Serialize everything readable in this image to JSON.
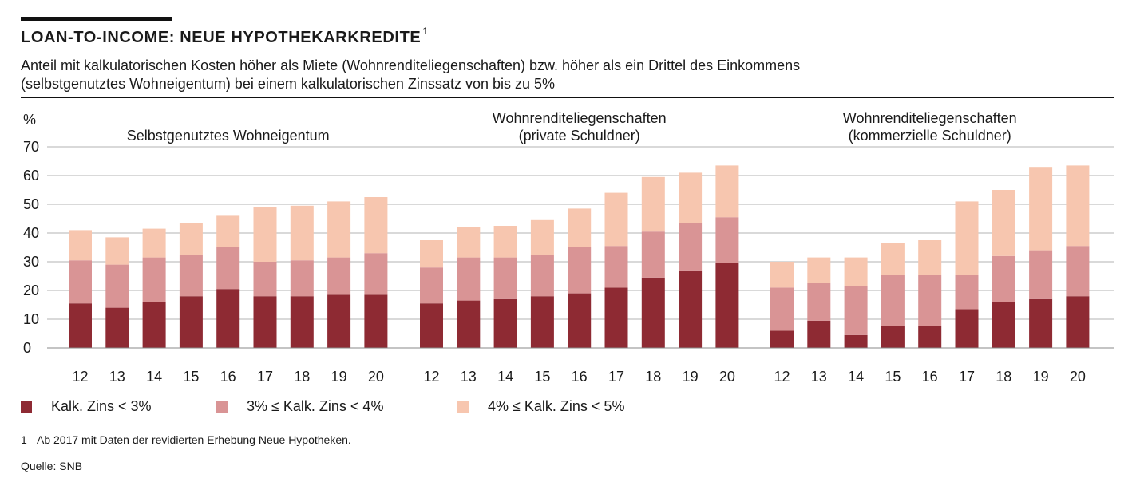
{
  "header": {
    "title": "LOAN-TO-INCOME: NEUE HYPOTHEKARKREDITE",
    "title_footnote_ref": "1",
    "subtitle_line1": "Anteil mit kalkulatorischen Kosten höher als Miete (Wohnrenditeliegenschaften) bzw. höher als ein Drittel des Einkommens",
    "subtitle_line2": "(selbstgenutztes Wohneigentum) bei einem kalkulatorischen Zinssatz von bis zu 5%"
  },
  "colors": {
    "low": "#8e2a33",
    "mid": "#d99495",
    "high": "#f7c6af",
    "grid": "#b3b3b3"
  },
  "chart_data": {
    "type": "bar",
    "stacked": true,
    "ylabel": "%",
    "ylim": [
      0,
      70
    ],
    "yticks": [
      0,
      10,
      20,
      30,
      40,
      50,
      60,
      70
    ],
    "grid": true,
    "legend_position": "bottom-left",
    "categories": [
      "12",
      "13",
      "14",
      "15",
      "16",
      "17",
      "18",
      "19",
      "20"
    ],
    "series_names": [
      "Kalk. Zins < 3%",
      "3% ≤ Kalk. Zins < 4%",
      "4% ≤ Kalk. Zins < 5%"
    ],
    "panels": [
      {
        "title_lines": [
          "",
          "Selbstgenutztes Wohneigentum"
        ],
        "series": [
          {
            "name": "Kalk. Zins < 3%",
            "values": [
              15.5,
              14.0,
              16.0,
              18.0,
              20.5,
              18.0,
              18.0,
              18.5,
              18.5
            ]
          },
          {
            "name": "3% ≤ Kalk. Zins < 4%",
            "values": [
              15.0,
              15.0,
              15.5,
              14.5,
              14.5,
              12.0,
              12.5,
              13.0,
              14.5
            ]
          },
          {
            "name": "4% ≤ Kalk. Zins < 5%",
            "values": [
              10.5,
              9.5,
              10.0,
              11.0,
              11.0,
              19.0,
              19.0,
              19.5,
              19.5
            ]
          }
        ]
      },
      {
        "title_lines": [
          "Wohnrenditeliegenschaften",
          "(private Schuldner)"
        ],
        "series": [
          {
            "name": "Kalk. Zins < 3%",
            "values": [
              15.5,
              16.5,
              17.0,
              18.0,
              19.0,
              21.0,
              24.5,
              27.0,
              29.5
            ]
          },
          {
            "name": "3% ≤ Kalk. Zins < 4%",
            "values": [
              12.5,
              15.0,
              14.5,
              14.5,
              16.0,
              14.5,
              16.0,
              16.5,
              16.0
            ]
          },
          {
            "name": "4% ≤ Kalk. Zins < 5%",
            "values": [
              9.5,
              10.5,
              11.0,
              12.0,
              13.5,
              18.5,
              19.0,
              17.5,
              18.0
            ]
          }
        ]
      },
      {
        "title_lines": [
          "Wohnrenditeliegenschaften",
          "(kommerzielle Schuldner)"
        ],
        "series": [
          {
            "name": "Kalk. Zins < 3%",
            "values": [
              6.0,
              9.5,
              4.5,
              7.5,
              7.5,
              13.5,
              16.0,
              17.0,
              18.0
            ]
          },
          {
            "name": "3% ≤ Kalk. Zins < 4%",
            "values": [
              15.0,
              13.0,
              17.0,
              18.0,
              18.0,
              12.0,
              16.0,
              17.0,
              17.5
            ]
          },
          {
            "name": "4% ≤ Kalk. Zins < 5%",
            "values": [
              9.0,
              9.0,
              10.0,
              11.0,
              12.0,
              25.5,
              23.0,
              29.0,
              28.0
            ]
          }
        ]
      }
    ]
  },
  "legend": [
    {
      "label": "Kalk. Zins < 3%",
      "color": "#8e2a33"
    },
    {
      "label": "3% ≤ Kalk. Zins < 4%",
      "color": "#d99495"
    },
    {
      "label": "4% ≤ Kalk. Zins < 5%",
      "color": "#f7c6af"
    }
  ],
  "footnote": {
    "number": "1",
    "text": "Ab 2017 mit Daten der revidierten Erhebung Neue Hypotheken."
  },
  "source": "Quelle: SNB"
}
